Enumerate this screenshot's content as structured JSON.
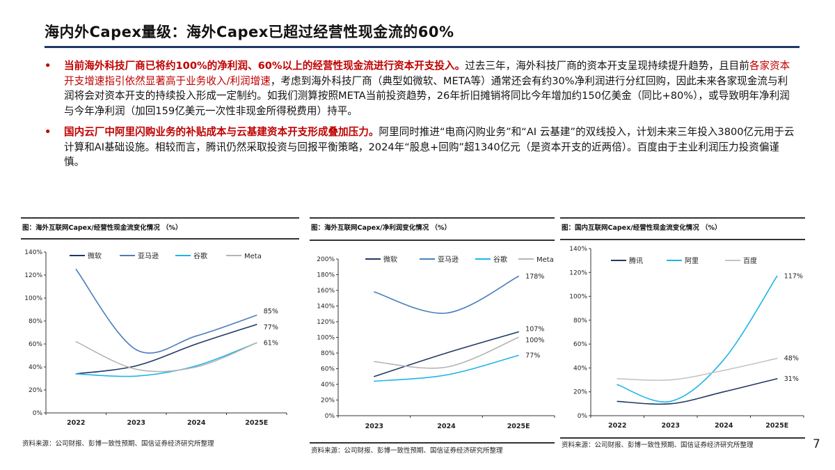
{
  "header": {
    "title": "海内外Capex量级：海外Capex已超过经营性现金流的60%"
  },
  "bullets": [
    {
      "segments": [
        {
          "style": "bold-red",
          "text": "当前海外科技厂商已将约100%的净利润、60%以上的经营性现金流进行资本开支投入。"
        },
        {
          "style": "normal",
          "text": "过去三年，海外科技厂商的资本开支呈现持续提升趋势，且目前"
        },
        {
          "style": "red",
          "text": "各家资本开支增速指引依然显著高于业务收入/利润增速"
        },
        {
          "style": "normal",
          "text": "，考虑到海外科技厂商（典型如微软、META等）通常还会有约30%净利润进行分红回购，因此未来各家现金流与利润将会对资本开支的持续投入形成一定制约。如我们测算按照META当前投资趋势，26年折旧摊销将同比今年增加约150亿美金（同比+80%），或导致明年净利润与今年净利润（加回159亿美元一次性非现金所得税费用）持平。"
        }
      ]
    },
    {
      "segments": [
        {
          "style": "bold-red",
          "text": "国内云厂中阿里闪购业务的补贴成本与云基建资本开支形成叠加压力。"
        },
        {
          "style": "normal",
          "text": "阿里同时推进“电商闪购业务”和“AI 云基建”的双线投入，计划未来三年投入3800亿元用于云计算和AI基础设施。相较而言，腾讯仍然采取投资与回报平衡策略，2024年“股息+回购”超1340亿元（是资本开支的近两倍）。百度由于主业利润压力投资偏谨慎。"
        }
      ]
    }
  ],
  "bullet_marker": "•",
  "page_number": "7",
  "chart_data": [
    {
      "type": "line",
      "title": "图：海外互联网Capex/经营性现金流变化情况 （%）",
      "source": "资料来源：公司财报、彭博一致性预期、国信证券经济研究所整理",
      "categories": [
        "2022",
        "2023",
        "2024",
        "2025E"
      ],
      "ylim": [
        0,
        140
      ],
      "yticks": [
        0,
        20,
        40,
        60,
        80,
        100,
        120,
        140
      ],
      "ytick_suffix": "%",
      "legend": "top",
      "grid": false,
      "series": [
        {
          "name": "微软",
          "color": "#1f3864",
          "values": [
            34,
            41,
            60,
            77
          ],
          "end_label": "77%"
        },
        {
          "name": "亚马逊",
          "color": "#4a7ebb",
          "values": [
            125,
            55,
            67,
            85
          ],
          "end_label": "85%"
        },
        {
          "name": "谷歌",
          "color": "#1fb4e8",
          "values": [
            34,
            32,
            41,
            61
          ],
          "end_label": ""
        },
        {
          "name": "Meta",
          "color": "#b4b4b4",
          "values": [
            62,
            38,
            40,
            61
          ],
          "end_label": "61%"
        }
      ]
    },
    {
      "type": "line",
      "title": "图：海外互联网Capex/净利润变化情况 （%）",
      "source": "资料来源：公司财报、彭博一致性预期、国信证券经济研究所整理",
      "categories": [
        "2023",
        "2024",
        "2025E"
      ],
      "ylim": [
        0,
        200
      ],
      "yticks": [
        0,
        20,
        40,
        60,
        80,
        100,
        120,
        140,
        160,
        180,
        200
      ],
      "ytick_suffix": "%",
      "legend": "top",
      "grid": false,
      "series": [
        {
          "name": "微软",
          "color": "#1f3864",
          "values": [
            50,
            80,
            107
          ],
          "end_label": "107%"
        },
        {
          "name": "亚马逊",
          "color": "#4a7ebb",
          "values": [
            158,
            131,
            178
          ],
          "end_label": "178%"
        },
        {
          "name": "谷歌",
          "color": "#1fb4e8",
          "values": [
            44,
            52,
            77
          ],
          "end_label": "77%"
        },
        {
          "name": "Meta",
          "color": "#b4b4b4",
          "values": [
            69,
            62,
            100
          ],
          "end_label": "100%"
        }
      ]
    },
    {
      "type": "line",
      "title": "图：国内互联网Capex/经营性现金流变化情况 （%）",
      "source": "资料来源：公司财报、彭博一致性预期、国信证券经济研究所整理",
      "categories": [
        "2022",
        "2023",
        "2024",
        "2025E"
      ],
      "ylim": [
        0,
        140
      ],
      "yticks": [
        0,
        20,
        40,
        60,
        80,
        100,
        120,
        140
      ],
      "ytick_suffix": "%",
      "legend": "top",
      "grid": false,
      "series": [
        {
          "name": "腾讯",
          "color": "#1f3864",
          "values": [
            12,
            10,
            20,
            31
          ],
          "end_label": "31%"
        },
        {
          "name": "阿里",
          "color": "#1fb4e8",
          "values": [
            26,
            12,
            47,
            117
          ],
          "end_label": "117%"
        },
        {
          "name": "百度",
          "color": "#c4c4c4",
          "values": [
            31,
            30,
            38,
            48
          ],
          "end_label": "48%"
        }
      ]
    }
  ]
}
